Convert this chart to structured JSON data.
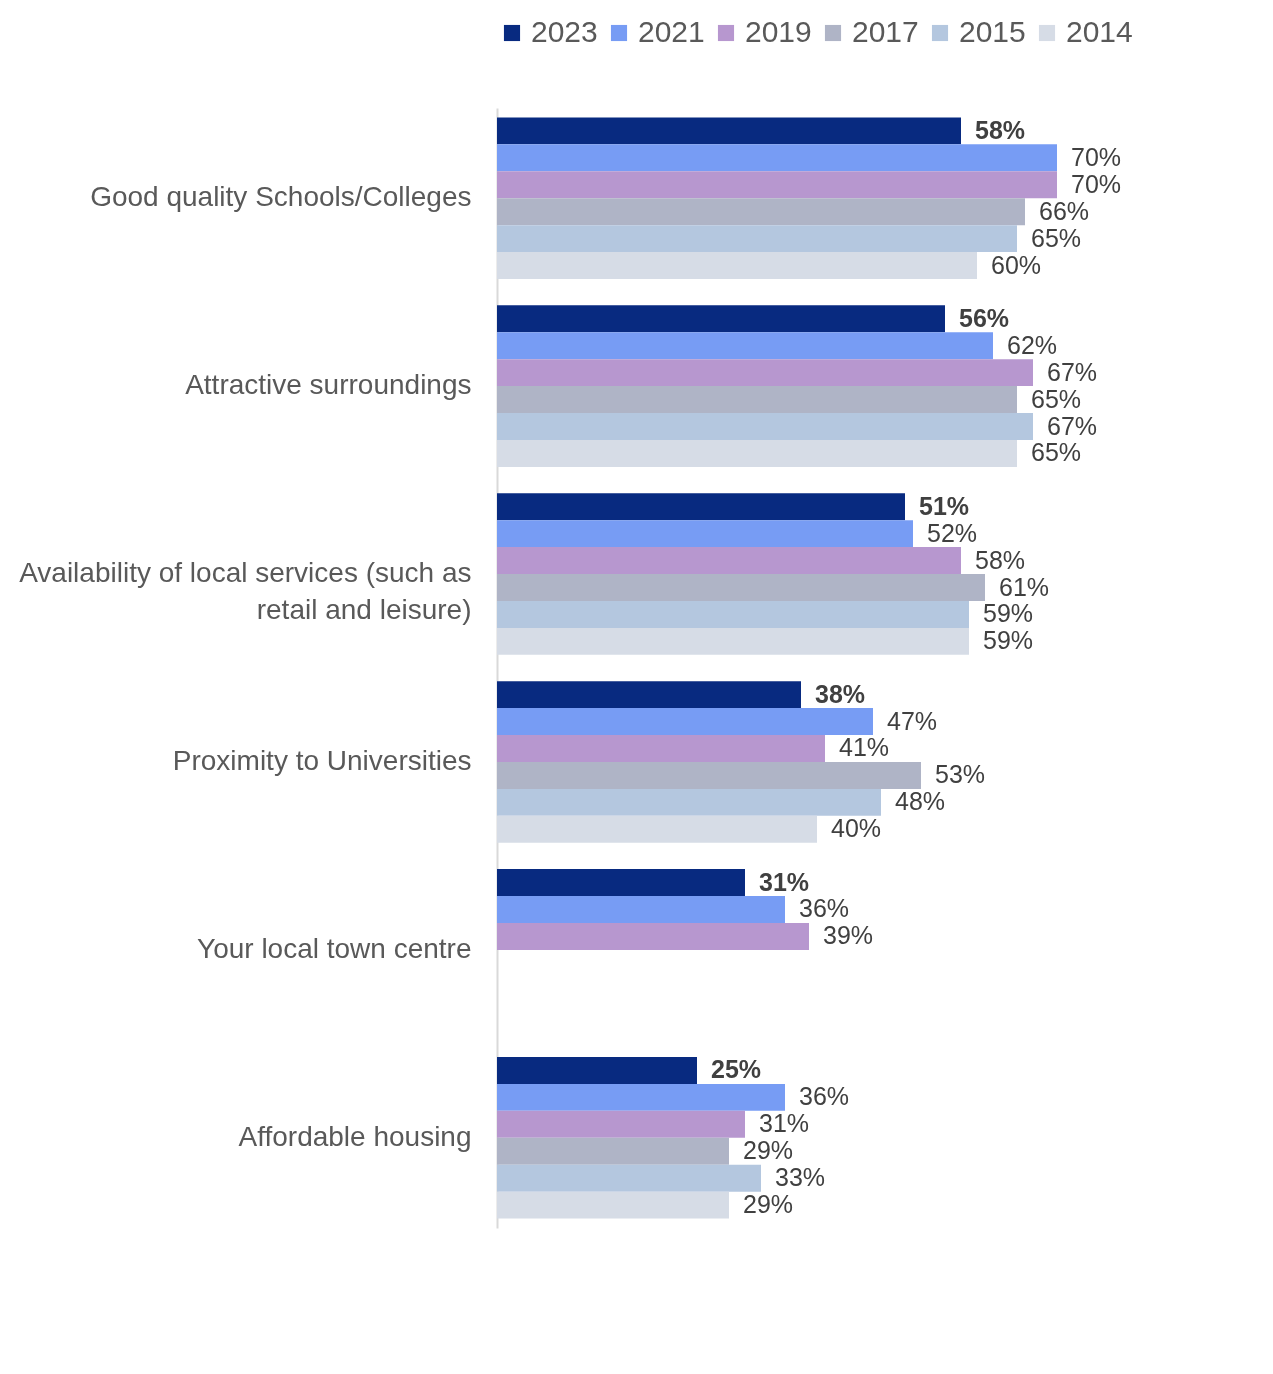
{
  "chart_data": {
    "type": "bar",
    "orientation": "horizontal",
    "legend": "top",
    "data_labels": true,
    "grid": false,
    "categories": [
      "Good quality Schools/Colleges",
      "Attractive surroundings",
      "Availability of local services (such as retail and leisure)",
      "Proximity to Universities",
      "Your local town centre",
      "Affordable housing"
    ],
    "series": [
      {
        "name": "2023",
        "color": "#082a80",
        "values": [
          58,
          56,
          51,
          38,
          31,
          25
        ],
        "value_labels": [
          "58%",
          "56%",
          "51%",
          "38%",
          "31%",
          "25%"
        ]
      },
      {
        "name": "2021",
        "color": "#779cf4",
        "values": [
          70,
          62,
          52,
          47,
          36,
          36
        ],
        "value_labels": [
          "70%",
          "62%",
          "52%",
          "47%",
          "36%",
          "36%"
        ]
      },
      {
        "name": "2019",
        "color": "#b797cf",
        "values": [
          70,
          67,
          58,
          41,
          39,
          31
        ],
        "value_labels": [
          "70%",
          "67%",
          "58%",
          "41%",
          "39%",
          "31%"
        ]
      },
      {
        "name": "2017",
        "color": "#afb4c6",
        "values": [
          66,
          65,
          61,
          53,
          null,
          29
        ],
        "value_labels": [
          "66%",
          "65%",
          "61%",
          "53%",
          null,
          "29%"
        ]
      },
      {
        "name": "2015",
        "color": "#b4c7df",
        "values": [
          65,
          67,
          59,
          48,
          null,
          33
        ],
        "value_labels": [
          "65%",
          "67%",
          "59%",
          "48%",
          null,
          "33%"
        ]
      },
      {
        "name": "2014",
        "color": "#d6dce6",
        "values": [
          60,
          65,
          59,
          40,
          null,
          29
        ],
        "value_labels": [
          "60%",
          "65%",
          "59%",
          "40%",
          null,
          "29%"
        ]
      }
    ]
  }
}
